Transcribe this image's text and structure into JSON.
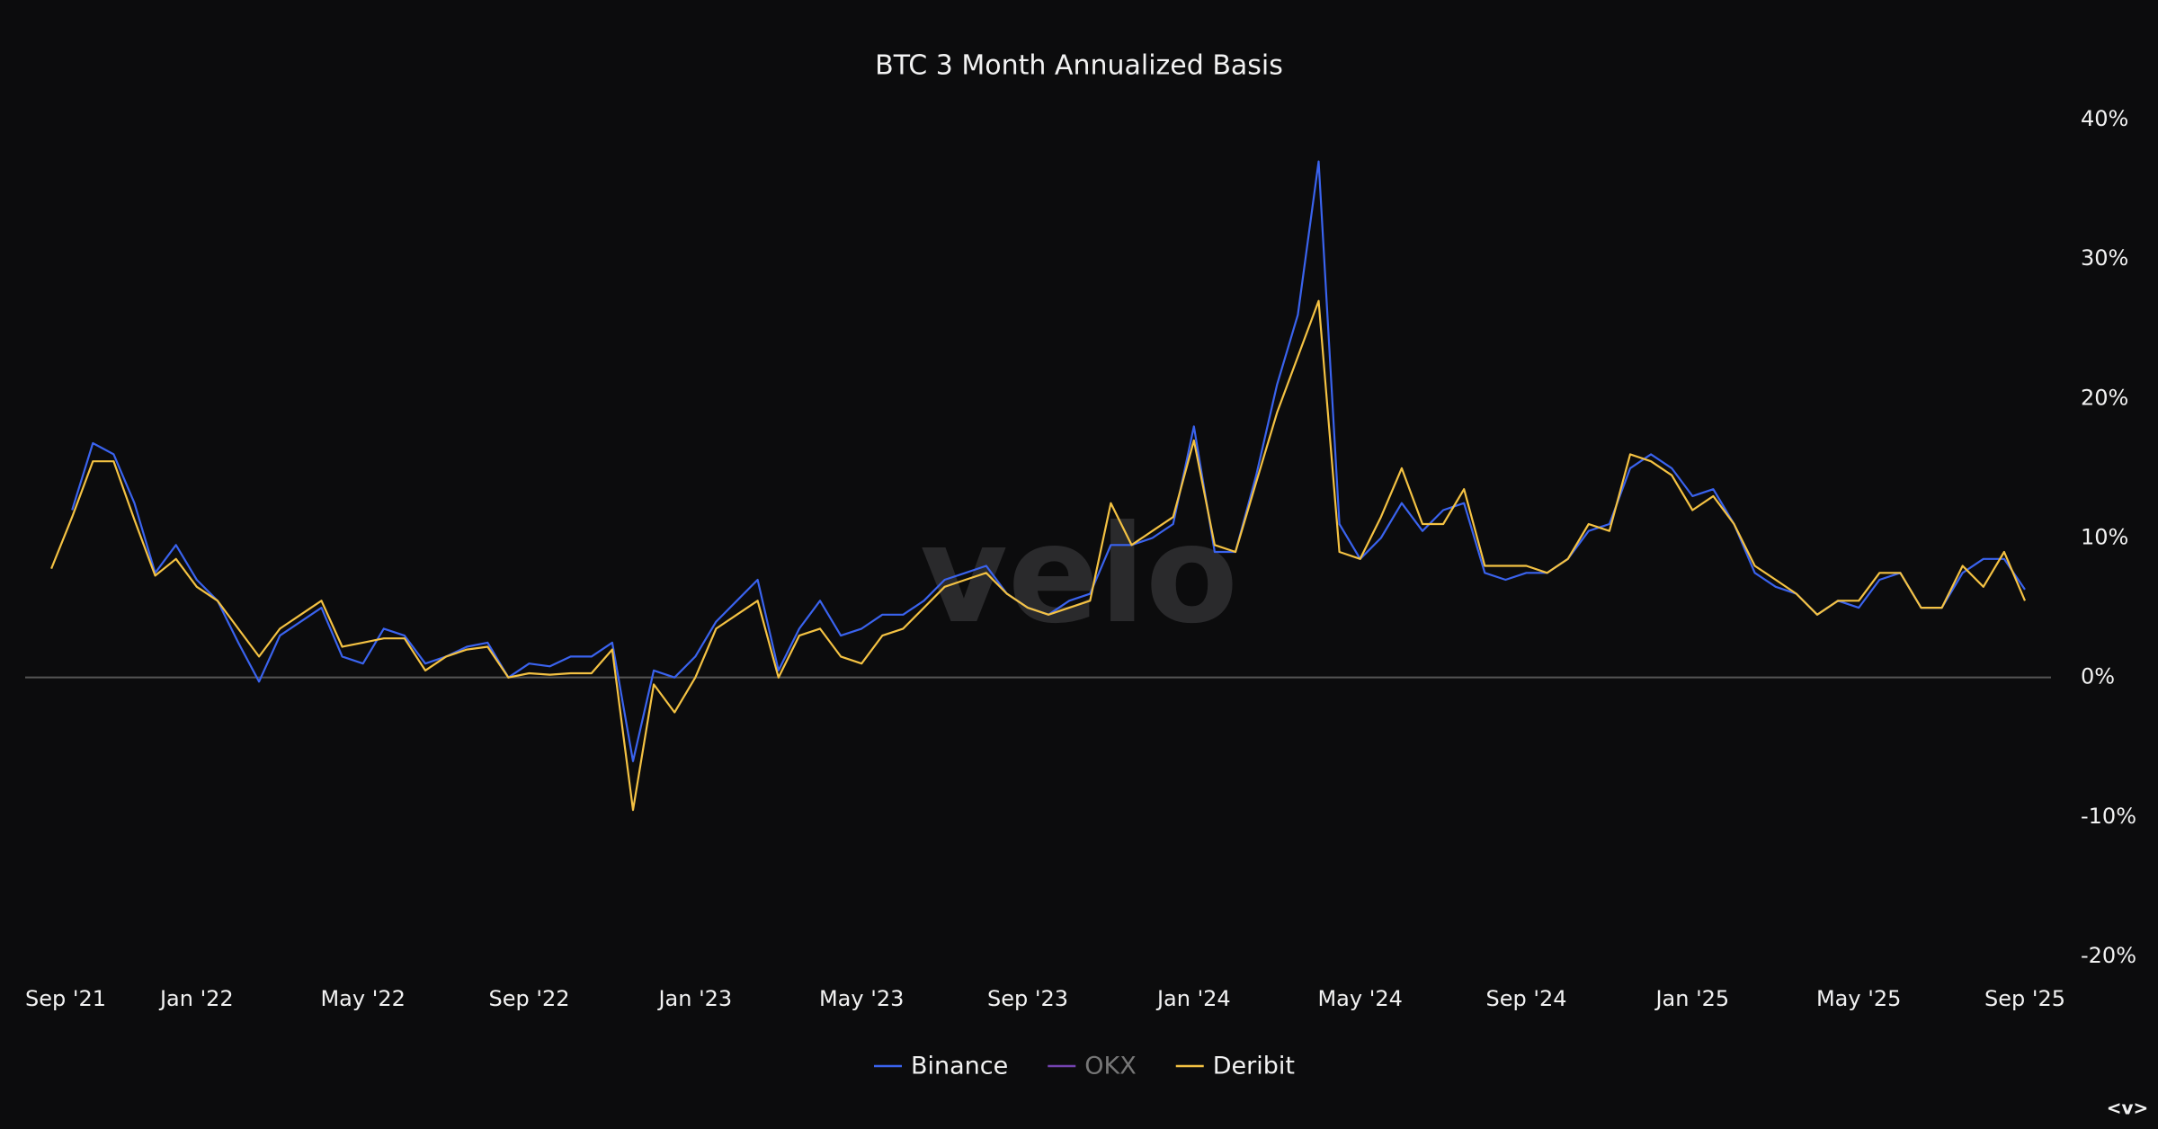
{
  "chart_data": {
    "type": "line",
    "title": "BTC 3 Month Annualized Basis",
    "watermark": "velo",
    "corner_mark": "<v>",
    "categories": [
      "Sep '21",
      null,
      null,
      null,
      null,
      null,
      null,
      null,
      "Jan '22",
      null,
      null,
      null,
      null,
      null,
      null,
      null,
      "May '22",
      null,
      null,
      null,
      null,
      null,
      null,
      null,
      "Sep '22",
      null,
      null,
      null,
      null,
      null,
      null,
      null,
      "Jan '23",
      null,
      null,
      null,
      null,
      null,
      null,
      null,
      "May '23",
      null,
      null,
      null,
      null,
      null,
      null,
      null,
      "Sep '23",
      null,
      null,
      null,
      null,
      null,
      null,
      null,
      "Jan '24",
      null,
      null,
      null,
      null,
      null,
      null,
      null,
      "May '24",
      null,
      null,
      null,
      null,
      null,
      null,
      null,
      "Sep '24",
      null,
      null,
      null,
      null,
      null,
      null,
      null,
      "Jan '25",
      null,
      null,
      null,
      null,
      null,
      null,
      null,
      "May '25",
      null,
      null,
      null,
      null,
      null,
      null,
      null,
      "Sep '25"
    ],
    "series": [
      {
        "name": "Binance",
        "color": "#3a63ee",
        "values": [
          null,
          null,
          12,
          16.8,
          16,
          12.5,
          7.5,
          9.5,
          7,
          5.5,
          2.5,
          -0.3,
          3,
          4,
          5,
          1.5,
          1,
          3.5,
          3,
          1,
          1.5,
          2.2,
          2.5,
          0,
          1,
          0.8,
          1.5,
          1.5,
          2.5,
          -6,
          0.5,
          0,
          1.5,
          4,
          5.5,
          7,
          0.5,
          3.5,
          5.5,
          3,
          3.5,
          4.5,
          4.5,
          5.5,
          7,
          7.5,
          8,
          6,
          5,
          4.5,
          5.5,
          6,
          9.5,
          9.5,
          10,
          11,
          18,
          9,
          9,
          14.5,
          21,
          26,
          37,
          11,
          8.5,
          10,
          12.5,
          10.5,
          12,
          12.5,
          7.5,
          7,
          7.5,
          7.5,
          8.5,
          10.5,
          11,
          15,
          16,
          15,
          13,
          13.5,
          11,
          7.5,
          6.5,
          6,
          4.5,
          5.5,
          5,
          7,
          7.5,
          5,
          5,
          7.5,
          8.5,
          8.5,
          6.3
        ]
      },
      {
        "name": "OKX",
        "color": "#7443b0",
        "visible": false
      },
      {
        "name": "Deribit",
        "color": "#f4c243",
        "values": [
          null,
          7.8,
          11.5,
          15.5,
          15.5,
          11.3,
          7.3,
          8.5,
          6.5,
          5.5,
          3.5,
          1.5,
          3.5,
          4.5,
          5.5,
          2.2,
          2.5,
          2.8,
          2.8,
          0.5,
          1.5,
          2,
          2.2,
          0,
          0.3,
          0.2,
          0.3,
          0.3,
          2,
          -9.5,
          -0.5,
          -2.5,
          0,
          3.5,
          4.5,
          5.5,
          0,
          3,
          3.5,
          1.5,
          1,
          3,
          3.5,
          5,
          6.5,
          7,
          7.5,
          6,
          5,
          4.5,
          5,
          5.5,
          12.5,
          9.5,
          10.5,
          11.5,
          17,
          9.5,
          9,
          14,
          19,
          23,
          27,
          9,
          8.5,
          11.5,
          15,
          11,
          11,
          13.5,
          8,
          8,
          8,
          7.5,
          8.5,
          11,
          10.5,
          16,
          15.5,
          14.5,
          12,
          13,
          11,
          8,
          7,
          6,
          4.5,
          5.5,
          5.5,
          7.5,
          7.5,
          5,
          5,
          8,
          6.5,
          9,
          5.5
        ]
      }
    ],
    "ylim": [
      -20,
      40
    ],
    "yticks": [
      {
        "value": -20,
        "label": "-20%"
      },
      {
        "value": -10,
        "label": "-10%"
      },
      {
        "value": 0,
        "label": "0%"
      },
      {
        "value": 10,
        "label": "10%"
      },
      {
        "value": 20,
        "label": "20%"
      },
      {
        "value": 30,
        "label": "30%"
      },
      {
        "value": 40,
        "label": "40%"
      }
    ],
    "grid": false,
    "legend": "bottom"
  }
}
